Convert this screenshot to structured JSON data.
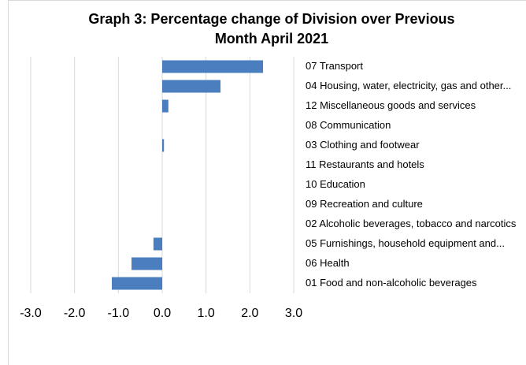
{
  "chart_data": {
    "type": "bar",
    "orientation": "horizontal",
    "title": [
      "Graph 3: Percentage change of Division over Previous",
      "Month April 2021"
    ],
    "categories": [
      "07 Transport",
      "04 Housing, water, electricity, gas and other...",
      "12 Miscellaneous goods and services",
      "08 Communication",
      "03 Clothing and footwear",
      "11 Restaurants and hotels",
      "10 Education",
      "09 Recreation and culture",
      "02 Alcoholic beverages, tobacco and narcotics",
      "05 Furnishings, household equipment and...",
      "06 Health",
      "01 Food and non-alcoholic beverages"
    ],
    "values": [
      2.3,
      1.33,
      0.14,
      0,
      0.04,
      0,
      0,
      0,
      0,
      -0.2,
      -0.7,
      -1.15
    ],
    "color": "#4a7ebf",
    "xlim": [
      -3,
      3
    ],
    "xticks": [
      {
        "value": -3,
        "label": "-3.0"
      },
      {
        "value": -2,
        "label": "-2.0"
      },
      {
        "value": -1,
        "label": "-1.0"
      },
      {
        "value": 0,
        "label": "0.0"
      },
      {
        "value": 1,
        "label": "1.0"
      },
      {
        "value": 2,
        "label": "2.0"
      },
      {
        "value": 3,
        "label": "3.0"
      }
    ],
    "grid": true
  }
}
